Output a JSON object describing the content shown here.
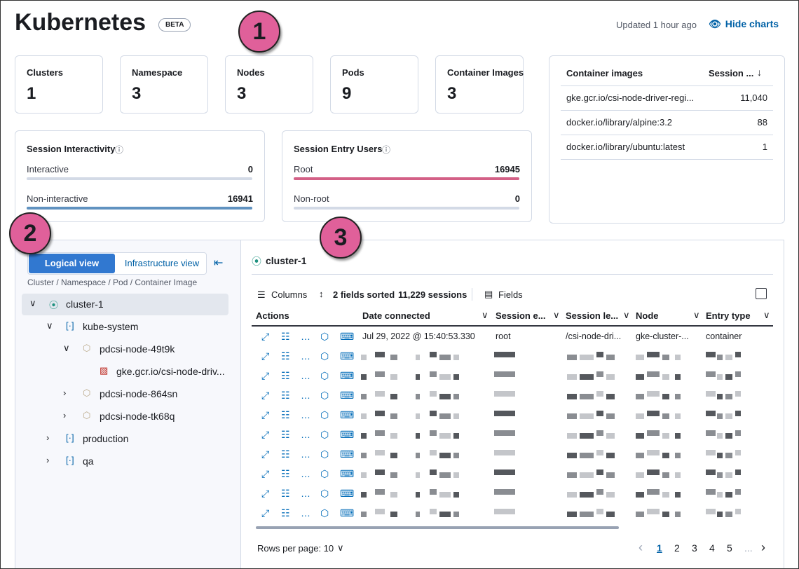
{
  "header": {
    "title": "Kubernetes",
    "badge": "BETA",
    "updated": "Updated 1 hour ago",
    "hide_charts": "Hide charts"
  },
  "callouts": [
    "1",
    "2",
    "3"
  ],
  "stats": [
    {
      "label": "Clusters",
      "value": 1
    },
    {
      "label": "Namespace",
      "value": 3
    },
    {
      "label": "Nodes",
      "value": 3
    },
    {
      "label": "Pods",
      "value": 9
    },
    {
      "label": "Container Images",
      "value": 3
    }
  ],
  "container_images": {
    "headers": [
      "Container images",
      "Session ..."
    ],
    "rows": [
      [
        "gke.gcr.io/csi-node-driver-regi...",
        "11,040"
      ],
      [
        "docker.io/library/alpine:3.2",
        "88"
      ],
      [
        "docker.io/library/ubuntu:latest",
        "1"
      ]
    ]
  },
  "interactivity": {
    "title": "Session Interactivity",
    "rows": [
      {
        "label": "Interactive",
        "value": 0
      },
      {
        "label": "Non-interactive",
        "value": 16941
      }
    ]
  },
  "entry_users": {
    "title": "Session Entry Users",
    "rows": [
      {
        "label": "Root",
        "value": 16945
      },
      {
        "label": "Non-root",
        "value": 0
      }
    ]
  },
  "tree_panel": {
    "tabs": [
      "Logical view",
      "Infrastructure view"
    ],
    "breadcrumb": "Cluster / Namespace / Pod / Container Image",
    "tree": [
      {
        "label": "cluster-1",
        "children": [
          {
            "label": "kube-system",
            "children": [
              {
                "label": "pdcsi-node-49t9k",
                "children": [
                  {
                    "label": "gke.gcr.io/csi-node-driv..."
                  }
                ]
              },
              {
                "label": "pdcsi-node-864sn"
              },
              {
                "label": "pdcsi-node-tk68q"
              }
            ]
          },
          {
            "label": "production"
          },
          {
            "label": "qa"
          }
        ]
      }
    ]
  },
  "table_panel": {
    "title": "cluster-1",
    "toolbar": {
      "columns": "Columns",
      "sorted": "2 fields sorted",
      "sessions": "11,229 sessions",
      "fields": "Fields"
    },
    "headers": [
      "Actions",
      "Date connected",
      "Session e...",
      "Session le...",
      "Node",
      "Entry type"
    ],
    "first_row": [
      "Jul 29, 2022 @ 15:40:53.330",
      "root",
      "/csi-node-dri...",
      "gke-cluster-...",
      "container"
    ],
    "rows_per_page": "Rows per page: 10",
    "pages": [
      "1",
      "2",
      "3",
      "4",
      "5",
      "..."
    ]
  }
}
